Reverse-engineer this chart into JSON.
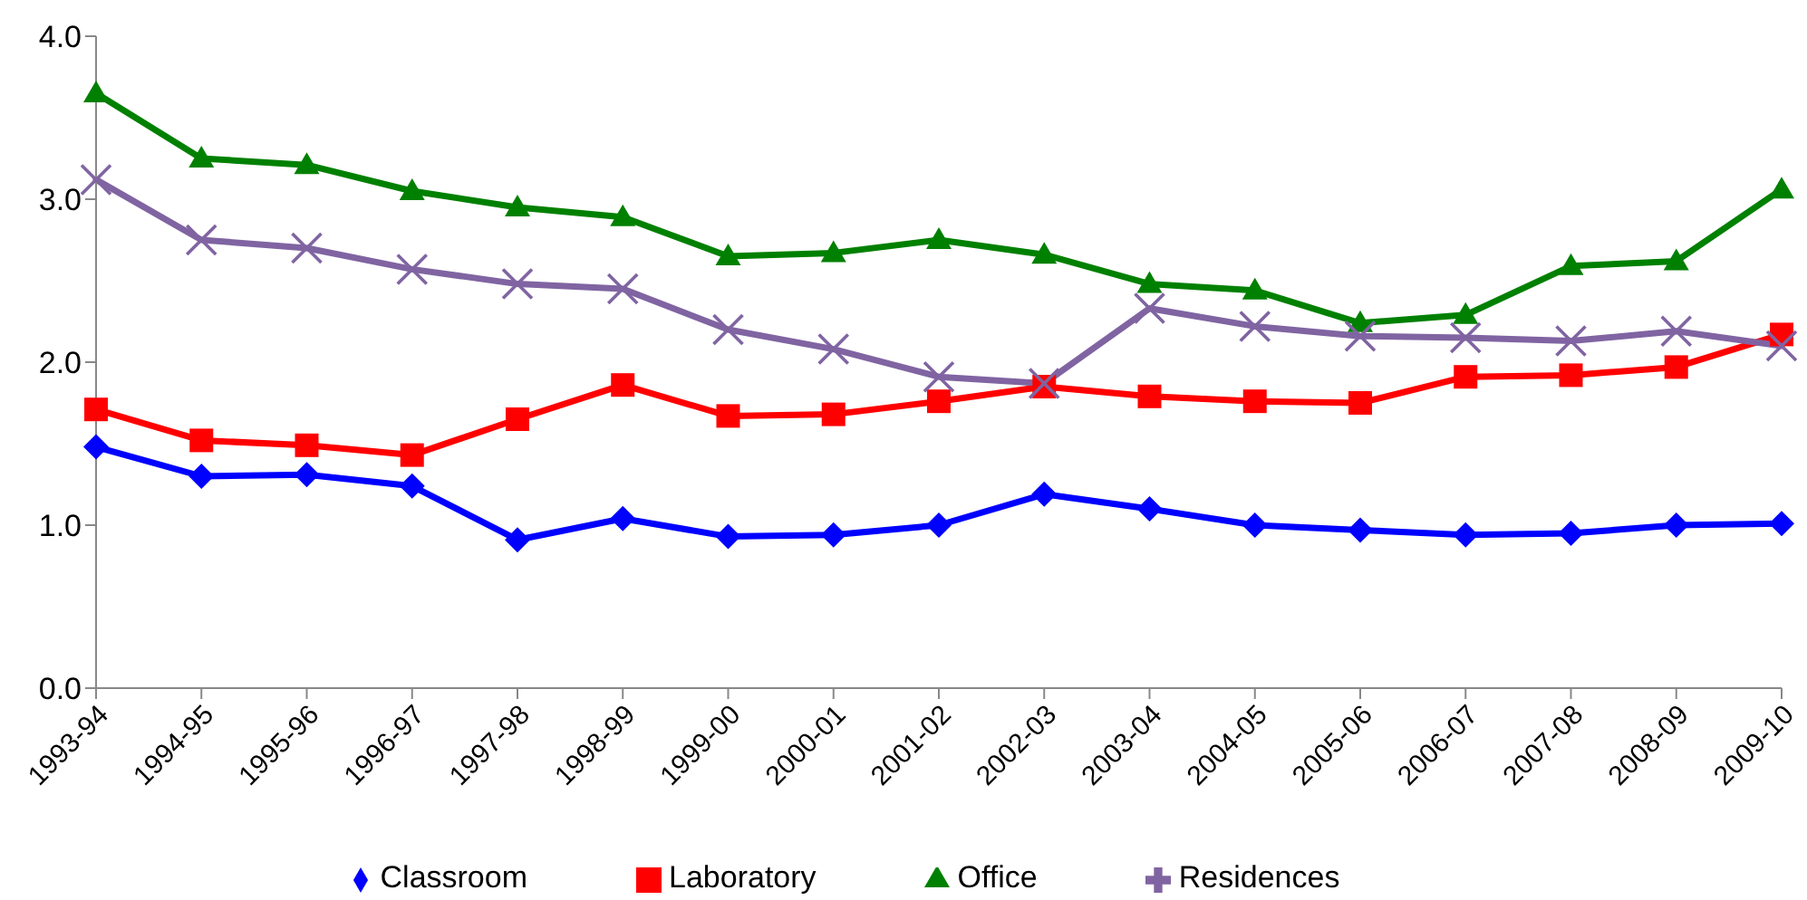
{
  "chart_data": {
    "type": "line",
    "categories": [
      "1993-94",
      "1994-95",
      "1995-96",
      "1996-97",
      "1997-98",
      "1998-99",
      "1999-00",
      "2000-01",
      "2001-02",
      "2002-03",
      "2003-04",
      "2004-05",
      "2005-06",
      "2006-07",
      "2007-08",
      "2008-09",
      "2009-10"
    ],
    "series": [
      {
        "name": "Classroom",
        "color": "#0000ff",
        "marker": "diamond",
        "values": [
          1.48,
          1.3,
          1.31,
          1.24,
          0.91,
          1.04,
          0.93,
          0.94,
          1.0,
          1.19,
          1.1,
          1.0,
          0.97,
          0.94,
          0.95,
          1.0,
          1.01
        ]
      },
      {
        "name": "Laboratory",
        "color": "#ff0000",
        "marker": "square",
        "values": [
          1.71,
          1.52,
          1.49,
          1.43,
          1.65,
          1.86,
          1.67,
          1.68,
          1.76,
          1.85,
          1.79,
          1.76,
          1.75,
          1.91,
          1.92,
          1.97,
          2.17
        ]
      },
      {
        "name": "Office",
        "color": "#008000",
        "marker": "triangle",
        "values": [
          3.65,
          3.25,
          3.21,
          3.05,
          2.95,
          2.89,
          2.65,
          2.67,
          2.75,
          2.66,
          2.48,
          2.44,
          2.24,
          2.29,
          2.59,
          2.62,
          3.06
        ]
      },
      {
        "name": "Residences",
        "color": "#8064a2",
        "marker": "cross",
        "values": [
          3.12,
          2.75,
          2.7,
          2.57,
          2.48,
          2.45,
          2.2,
          2.08,
          1.91,
          1.87,
          2.33,
          2.22,
          2.16,
          2.15,
          2.13,
          2.19,
          2.1
        ]
      }
    ],
    "ylim": [
      0,
      4
    ],
    "yticks": [
      {
        "value": 0,
        "label": "0.0"
      },
      {
        "value": 1,
        "label": "1.0"
      },
      {
        "value": 2,
        "label": "2.0"
      },
      {
        "value": 3,
        "label": "3.0"
      },
      {
        "value": 4,
        "label": "4.0"
      }
    ],
    "grid": false,
    "legend": "bottom",
    "line_style": "solid"
  }
}
